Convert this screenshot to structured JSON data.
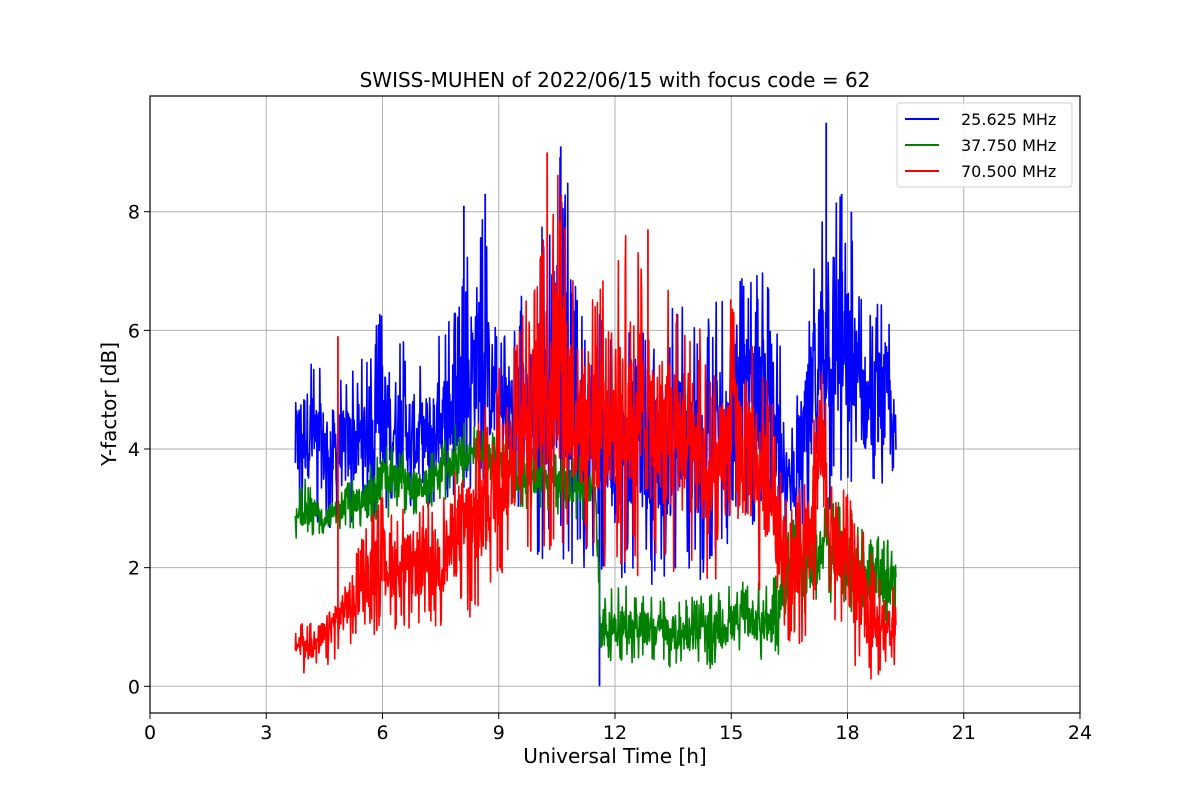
{
  "chart_data": {
    "type": "line",
    "title": "SWISS-MUHEN of 2022/06/15 with focus code = 62",
    "xlabel": "Universal Time [h]",
    "ylabel": "Y-factor [dB]",
    "xlim": [
      0,
      24
    ],
    "ylim": [
      -0.45,
      9.95
    ],
    "xticks": [
      "0",
      "3",
      "6",
      "9",
      "12",
      "15",
      "18",
      "21",
      "24"
    ],
    "yticks": [
      "0",
      "2",
      "4",
      "6",
      "8"
    ],
    "grid": true,
    "legend_position": "top-right",
    "series": [
      {
        "name": "25.625 MHz",
        "color": "#0000ff",
        "x": [
          3.75,
          4.0,
          4.5,
          5.0,
          5.5,
          6.0,
          6.5,
          7.0,
          7.5,
          8.0,
          8.5,
          9.0,
          9.5,
          10.0,
          10.5,
          11.0,
          11.5,
          12.0,
          12.5,
          13.0,
          13.5,
          14.0,
          14.5,
          15.0,
          15.5,
          16.0,
          16.5,
          17.0,
          17.5,
          18.0,
          18.5,
          19.0,
          19.25
        ],
        "low": [
          2.6,
          2.8,
          2.6,
          2.7,
          2.8,
          2.7,
          2.8,
          2.7,
          2.9,
          3.0,
          3.1,
          3.2,
          3.0,
          2.0,
          2.2,
          2.0,
          1.6,
          1.8,
          1.9,
          1.7,
          1.6,
          1.8,
          1.6,
          2.5,
          2.6,
          2.5,
          2.4,
          2.5,
          2.9,
          3.0,
          3.1,
          2.9,
          2.8
        ],
        "high": [
          5.5,
          5.8,
          5.4,
          5.3,
          5.6,
          6.4,
          5.9,
          5.5,
          6.0,
          6.6,
          8.3,
          6.0,
          6.5,
          7.4,
          9.1,
          8.3,
          6.7,
          5.6,
          6.8,
          6.0,
          6.5,
          6.4,
          6.3,
          7.5,
          6.8,
          7.3,
          4.3,
          6.5,
          9.5,
          8.0,
          6.3,
          6.8,
          5.2
        ],
        "spikes": [
          {
            "x": 8.1,
            "y": 8.1
          },
          {
            "x": 8.65,
            "y": 8.3
          },
          {
            "x": 10.6,
            "y": 9.1
          },
          {
            "x": 17.45,
            "y": 9.5
          },
          {
            "x": 17.85,
            "y": 8.3
          },
          {
            "x": 18.1,
            "y": 8.0
          },
          {
            "x": 11.6,
            "y": 0.0
          }
        ]
      },
      {
        "name": "37.750 MHz",
        "color": "#008000",
        "x": [
          3.75,
          4.0,
          4.5,
          5.0,
          5.5,
          6.0,
          6.5,
          7.0,
          7.5,
          8.0,
          8.5,
          9.0,
          9.5,
          10.0,
          10.5,
          11.0,
          11.5,
          11.62,
          12.0,
          12.5,
          13.0,
          13.5,
          14.0,
          14.5,
          15.0,
          15.5,
          16.0,
          16.3,
          16.5,
          17.0,
          17.5,
          18.0,
          18.5,
          19.0,
          19.25
        ],
        "low": [
          2.4,
          2.5,
          2.5,
          2.6,
          2.7,
          2.8,
          2.9,
          2.9,
          3.1,
          3.3,
          3.4,
          3.3,
          3.0,
          3.0,
          2.9,
          2.8,
          2.8,
          0.3,
          0.3,
          0.4,
          0.4,
          0.3,
          0.3,
          0.2,
          0.4,
          0.5,
          0.3,
          0.6,
          0.8,
          1.1,
          1.4,
          1.2,
          1.1,
          1.0,
          1.0
        ],
        "high": [
          3.2,
          3.5,
          3.2,
          3.4,
          3.6,
          4.2,
          4.0,
          3.8,
          4.1,
          4.5,
          4.4,
          4.3,
          4.0,
          4.0,
          4.0,
          3.9,
          3.8,
          1.6,
          1.8,
          1.6,
          1.5,
          1.5,
          1.5,
          1.6,
          1.7,
          1.8,
          1.8,
          2.4,
          2.8,
          3.0,
          3.2,
          3.0,
          2.6,
          2.5,
          2.4
        ]
      },
      {
        "name": "70.500 MHz",
        "color": "#ff0000",
        "x": [
          3.75,
          4.0,
          4.5,
          5.0,
          5.5,
          6.0,
          6.5,
          7.0,
          7.5,
          8.0,
          8.5,
          9.0,
          9.5,
          10.0,
          10.5,
          11.0,
          11.5,
          12.0,
          12.5,
          13.0,
          13.5,
          14.0,
          14.5,
          15.0,
          15.5,
          16.0,
          16.5,
          17.0,
          17.3,
          17.6,
          18.0,
          18.5,
          19.0,
          19.25
        ],
        "low": [
          0.2,
          0.2,
          0.3,
          0.6,
          0.8,
          0.9,
          1.0,
          0.9,
          1.0,
          1.1,
          1.0,
          1.8,
          2.0,
          2.1,
          2.2,
          2.1,
          2.0,
          2.0,
          1.8,
          1.8,
          1.7,
          1.5,
          1.3,
          1.5,
          1.6,
          1.6,
          0.7,
          0.7,
          2.0,
          1.2,
          0.5,
          0.1,
          0.2,
          0.4
        ],
        "high": [
          1.3,
          1.0,
          1.4,
          2.0,
          2.6,
          3.3,
          3.0,
          3.3,
          3.2,
          4.3,
          4.5,
          5.4,
          6.0,
          7.4,
          8.9,
          7.0,
          7.0,
          7.5,
          7.7,
          7.0,
          6.8,
          6.5,
          5.3,
          6.6,
          6.3,
          5.0,
          3.0,
          4.0,
          6.1,
          4.0,
          3.3,
          2.5,
          1.8,
          1.7
        ],
        "spikes": [
          {
            "x": 4.85,
            "y": 5.9
          },
          {
            "x": 10.25,
            "y": 9.0
          },
          {
            "x": 12.85,
            "y": 7.7
          }
        ]
      }
    ]
  }
}
